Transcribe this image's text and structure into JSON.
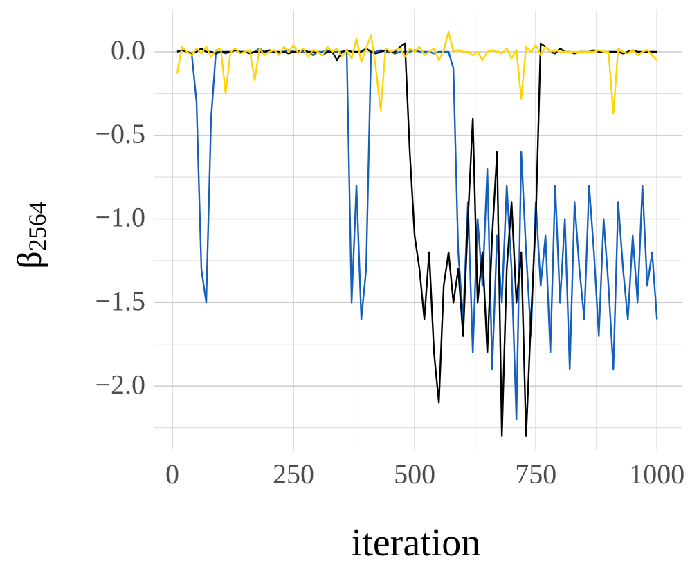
{
  "chart_data": {
    "type": "line",
    "xlabel": "iteration",
    "ylabel": "β",
    "ylabel_sub": "2564",
    "x": [
      10,
      20,
      30,
      40,
      50,
      60,
      70,
      80,
      90,
      100,
      110,
      120,
      130,
      140,
      150,
      160,
      170,
      180,
      190,
      200,
      210,
      220,
      230,
      240,
      250,
      260,
      270,
      280,
      290,
      300,
      310,
      320,
      330,
      340,
      350,
      360,
      370,
      380,
      390,
      400,
      410,
      420,
      430,
      440,
      450,
      460,
      470,
      480,
      490,
      500,
      510,
      520,
      530,
      540,
      550,
      560,
      570,
      580,
      590,
      600,
      610,
      620,
      630,
      640,
      650,
      660,
      670,
      680,
      690,
      700,
      710,
      720,
      730,
      740,
      750,
      760,
      770,
      780,
      790,
      800,
      810,
      820,
      830,
      840,
      850,
      860,
      870,
      880,
      890,
      900,
      910,
      920,
      930,
      940,
      950,
      960,
      970,
      980,
      990,
      1000
    ],
    "series": [
      {
        "color": "#1560bd",
        "values": [
          0,
          0.01,
          0,
          -0.01,
          -0.3,
          -1.3,
          -1.5,
          -0.4,
          0,
          0,
          -0.01,
          0,
          0.01,
          0,
          0,
          -0.01,
          0,
          0.02,
          0,
          0,
          0,
          -0.01,
          0,
          0.01,
          0,
          0,
          0,
          0,
          -0.02,
          0,
          0,
          0.01,
          0,
          0,
          0,
          0,
          -1.5,
          -0.8,
          -1.6,
          -1.3,
          0,
          0,
          0.01,
          0,
          0,
          -0.01,
          0,
          0,
          0,
          0.01,
          0,
          0,
          0,
          -0.01,
          0,
          0,
          0,
          -0.1,
          -1.2,
          -1.6,
          -0.9,
          -1.8,
          -1.0,
          -1.4,
          -0.7,
          -1.9,
          -1.1,
          -1.5,
          -0.8,
          -1.3,
          -2.2,
          -0.6,
          -1.2,
          -1.7,
          -0.9,
          -1.4,
          -1.1,
          -1.8,
          -0.8,
          -1.5,
          -1.0,
          -1.9,
          -0.9,
          -1.3,
          -1.6,
          -0.8,
          -1.2,
          -1.7,
          -1.0,
          -1.4,
          -1.9,
          -0.9,
          -1.3,
          -1.6,
          -1.1,
          -1.5,
          -0.8,
          -1.4,
          -1.2,
          -1.6
        ]
      },
      {
        "color": "#000000",
        "values": [
          0,
          0.01,
          0,
          -0.01,
          0,
          0.02,
          0,
          0,
          -0.01,
          0,
          0,
          0,
          0.01,
          0,
          0,
          -0.01,
          0,
          0,
          0,
          0.01,
          0,
          0,
          0,
          -0.01,
          0,
          0,
          0.01,
          0,
          0,
          0,
          -0.02,
          0,
          0,
          -0.05,
          0,
          0.01,
          0,
          0,
          0,
          0.02,
          0,
          -0.01,
          0,
          0.01,
          0,
          0,
          0.03,
          0.05,
          -0.6,
          -1.1,
          -1.3,
          -1.6,
          -1.2,
          -1.8,
          -2.1,
          -1.4,
          -1.2,
          -1.5,
          -1.3,
          -1.7,
          -1.0,
          -0.4,
          -1.5,
          -1.2,
          -1.8,
          -1.1,
          -0.6,
          -2.3,
          -1.3,
          -0.9,
          -1.5,
          -1.2,
          -2.3,
          -1.6,
          -1.0,
          0.05,
          0.03,
          0,
          -0.01,
          0.02,
          0,
          0,
          -0.01,
          0,
          0,
          0,
          0.01,
          0,
          0,
          0,
          0,
          0,
          -0.01,
          0,
          0.01,
          0,
          0,
          0,
          0,
          0
        ]
      },
      {
        "color": "#ffd400",
        "values": [
          -0.13,
          0.03,
          0,
          -0.02,
          0.02,
          -0.01,
          0.03,
          -0.03,
          0.01,
          0.02,
          -0.25,
          0,
          0.02,
          -0.01,
          0,
          0.01,
          -0.17,
          0.02,
          -0.02,
          0,
          0.01,
          -0.02,
          0.03,
          0,
          0.04,
          -0.01,
          0.02,
          -0.03,
          0.01,
          0,
          -0.02,
          0.03,
          0,
          0.02,
          -0.03,
          0.01,
          -0.04,
          0.08,
          -0.06,
          0.02,
          0.1,
          -0.1,
          -0.35,
          0.02,
          0,
          0.01,
          0.02,
          -0.03,
          0.02,
          0,
          0.03,
          -0.02,
          0,
          0.02,
          -0.05,
          0.01,
          0.12,
          0,
          0.01,
          0,
          0,
          -0.02,
          0,
          -0.05,
          0,
          0.01,
          0,
          -0.01,
          0.02,
          -0.04,
          0.01,
          -0.28,
          0.03,
          0,
          0.04,
          -0.02,
          0.03,
          0,
          0.01,
          0,
          0,
          0,
          0,
          0,
          0,
          0,
          0,
          0.01,
          0,
          0,
          -0.37,
          0.02,
          0,
          -0.01,
          0.01,
          -0.02,
          0,
          0.01,
          -0.02,
          -0.05
        ]
      }
    ],
    "xlim": [
      -38.5,
      1051
    ],
    "ylim": [
      -2.38,
      0.248
    ],
    "xticks": [
      0,
      250,
      500,
      750,
      1000
    ],
    "xminor": [
      125,
      375,
      625,
      875
    ],
    "yticks": [
      {
        "value": -2,
        "label": "−2.0"
      },
      {
        "value": -1.5,
        "label": "−1.5"
      },
      {
        "value": -1,
        "label": "−1.0"
      },
      {
        "value": -0.5,
        "label": "−0.5"
      },
      {
        "value": 0,
        "label": "0.0"
      }
    ],
    "yminor": [
      -2.25,
      -1.75,
      -1.25,
      -0.75,
      -0.25
    ],
    "grid": true
  }
}
